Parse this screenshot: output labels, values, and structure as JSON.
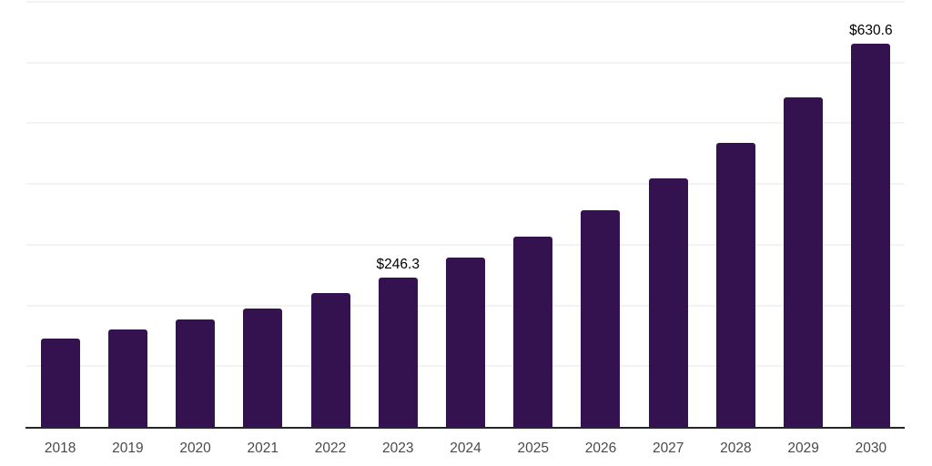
{
  "chart_data": {
    "type": "bar",
    "title": "",
    "xlabel": "",
    "ylabel": "",
    "categories": [
      "2018",
      "2019",
      "2020",
      "2021",
      "2022",
      "2023",
      "2024",
      "2025",
      "2026",
      "2027",
      "2028",
      "2029",
      "2030"
    ],
    "values": [
      146,
      161,
      177,
      195,
      220,
      246.3,
      279,
      313,
      357,
      409,
      468,
      543,
      630.6
    ],
    "labeled_values": [
      {
        "category": "2023",
        "label": "$246.3"
      },
      {
        "category": "2030",
        "label": "$630.6"
      }
    ],
    "ylim": [
      0,
      700
    ],
    "gridline_step": 100,
    "grid": true,
    "legend": false,
    "y_tick_labels_visible": false,
    "colors": {
      "bar": "#341250",
      "gridline": "#f3f3f3",
      "axis_line": "#262626",
      "tick_label": "#4a4a4a",
      "data_label": "#000000",
      "background": "#ffffff"
    }
  }
}
